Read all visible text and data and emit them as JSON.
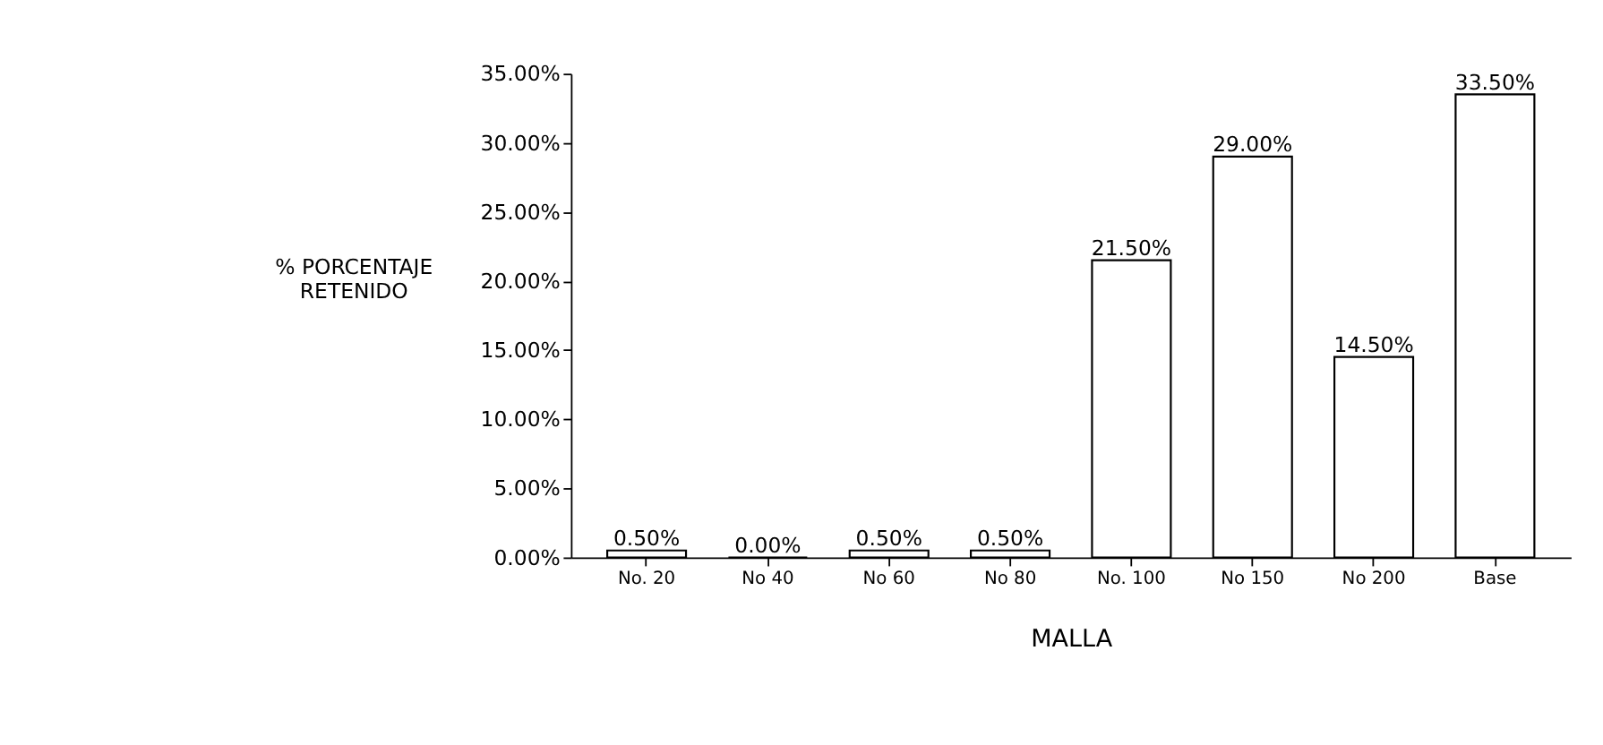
{
  "chart_data": {
    "type": "bar",
    "xlabel": "MALLA",
    "ylabel": "% PORCENTAJE RETENIDO",
    "categories": [
      "No. 20",
      "No 40",
      "No 60",
      "No 80",
      "No. 100",
      "No 150",
      "No 200",
      "Base"
    ],
    "values": [
      0.5,
      0,
      0.5,
      0.5,
      21.5,
      29,
      14.5,
      33.5
    ],
    "value_labels": [
      "0.50%",
      "0.00%",
      "0.50%",
      "0.50%",
      "21.50%",
      "29.00%",
      "14.50%",
      "33.50%"
    ],
    "color": "#ffffff",
    "ylim": [
      0,
      35
    ],
    "yticks": [
      {
        "value": 0,
        "label": "0.00%"
      },
      {
        "value": 5,
        "label": "5.00%"
      },
      {
        "value": 10,
        "label": "10.00%"
      },
      {
        "value": 15,
        "label": "15.00%"
      },
      {
        "value": 20,
        "label": "20.00%"
      },
      {
        "value": 25,
        "label": "25.00%"
      },
      {
        "value": 30,
        "label": "30.00%"
      },
      {
        "value": 35,
        "label": "35.00%"
      }
    ],
    "grid": false
  }
}
